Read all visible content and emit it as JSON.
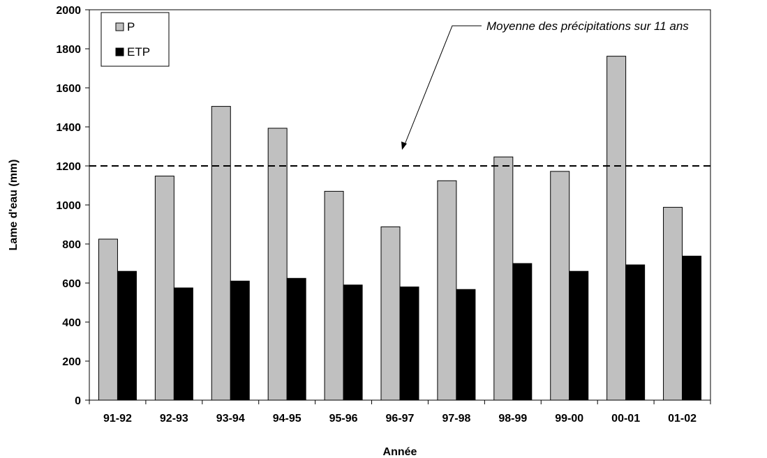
{
  "chart_data": {
    "type": "bar",
    "categories": [
      "91-92",
      "92-93",
      "93-94",
      "94-95",
      "95-96",
      "96-97",
      "97-98",
      "98-99",
      "99-00",
      "00-01",
      "01-02"
    ],
    "series": [
      {
        "name": "P",
        "color": "#c0c0c0",
        "values": [
          825,
          1148,
          1505,
          1393,
          1070,
          888,
          1124,
          1246,
          1172,
          1762,
          988
        ]
      },
      {
        "name": "ETP",
        "color": "#000000",
        "values": [
          660,
          575,
          610,
          624,
          590,
          580,
          567,
          700,
          660,
          693,
          738
        ]
      }
    ],
    "xlabel": "Année",
    "ylabel": "Lame d'eau (mm)",
    "ylim": [
      0,
      2000
    ],
    "yticks": [
      0,
      200,
      400,
      600,
      800,
      1000,
      1200,
      1400,
      1600,
      1800,
      2000
    ],
    "grid": false,
    "legend_position": "top-left",
    "reference_line": {
      "value": 1200,
      "style": "dashed",
      "label": "Moyenne des précipitations sur 11 ans"
    }
  }
}
